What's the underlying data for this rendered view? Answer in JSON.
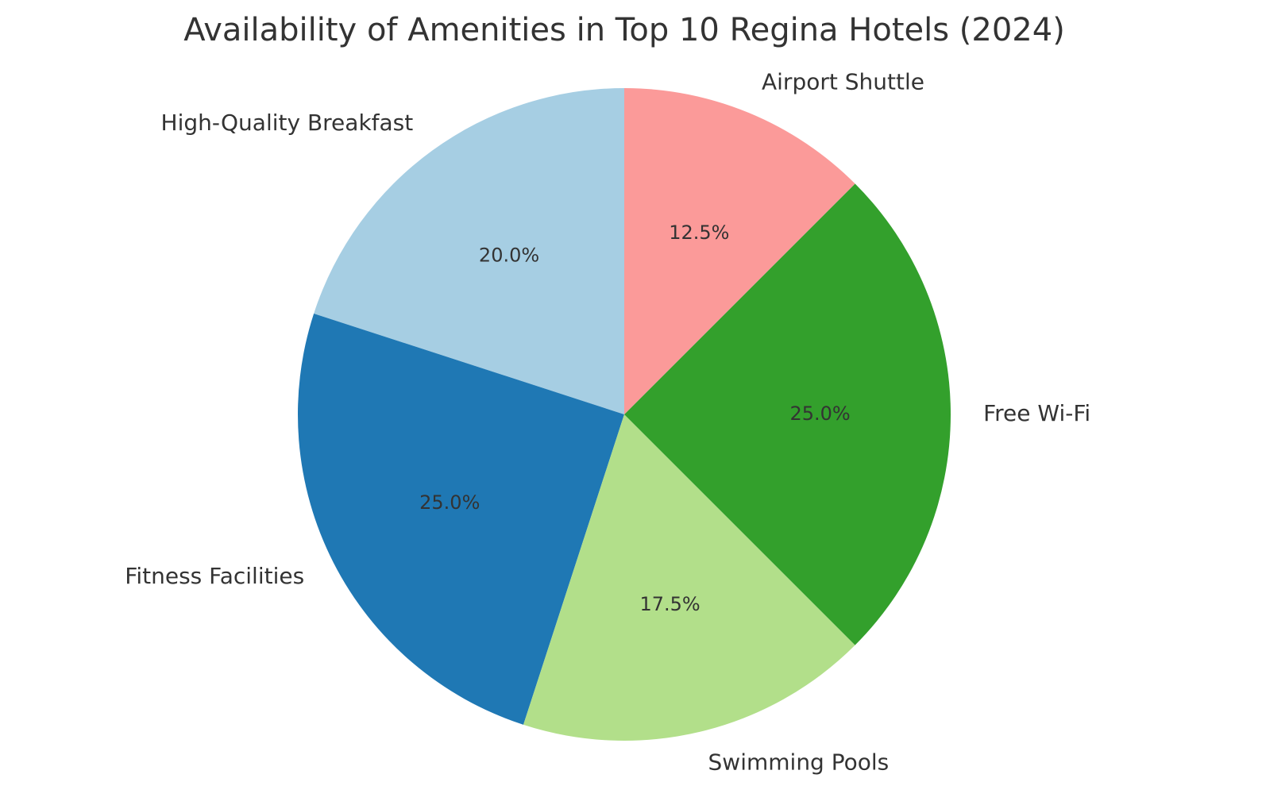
{
  "chart_data": {
    "type": "pie",
    "title": "Availability of Amenities in Top 10 Regina Hotels (2024)",
    "categories": [
      "High-Quality Breakfast",
      "Fitness Facilities",
      "Swimming Pools",
      "Free Wi-Fi",
      "Airport Shuttle"
    ],
    "values": [
      20,
      25,
      17.5,
      25,
      12.5
    ],
    "value_labels": [
      "20.0%",
      "25.0%",
      "17.5%",
      "25.0%",
      "12.5%"
    ],
    "colors": [
      "#a6cee3",
      "#1f78b4",
      "#b2df8a",
      "#33a02c",
      "#fb9a99"
    ]
  }
}
